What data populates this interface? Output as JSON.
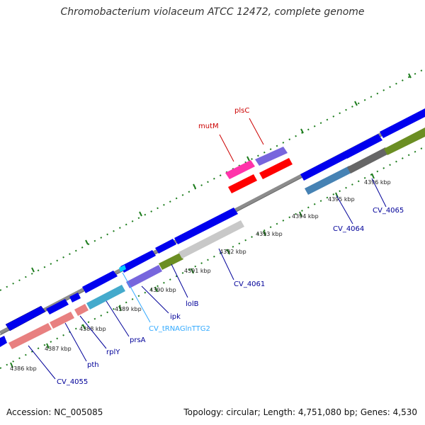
{
  "title": "Chromobacterium violaceum ATCC 12472, complete genome",
  "footer": {
    "accession": "Accession: NC_005085",
    "summary": "Topology: circular; Length: 4,751,080 bp; Genes: 4,530"
  },
  "ruler_labels": [
    "4386 kbp",
    "4387 kbp",
    "4388 kbp",
    "4389 kbp",
    "4390 kbp",
    "4391 kbp",
    "4392 kbp",
    "4393 kbp",
    "4394 kbp",
    "4395 kbp",
    "4396 kbp"
  ],
  "gene_labels": [
    {
      "text": "CV_4055",
      "color": "#000099"
    },
    {
      "text": "pth",
      "color": "#000099"
    },
    {
      "text": "rplY",
      "color": "#000099"
    },
    {
      "text": "prsA",
      "color": "#000099"
    },
    {
      "text": "CV_tRNAGlnTTG2",
      "color": "#33aaff"
    },
    {
      "text": "ipk",
      "color": "#000099"
    },
    {
      "text": "lolB",
      "color": "#000099"
    },
    {
      "text": "CV_4061",
      "color": "#000099"
    },
    {
      "text": "CV_4064",
      "color": "#000099"
    },
    {
      "text": "CV_4065",
      "color": "#000099"
    },
    {
      "text": "mutM",
      "color": "#cc0000"
    },
    {
      "text": "plsC",
      "color": "#cc0000"
    }
  ],
  "colors": {
    "backbone": "#8a8a8a",
    "tick": "#1e7d1e",
    "cds": "#0000ee"
  }
}
